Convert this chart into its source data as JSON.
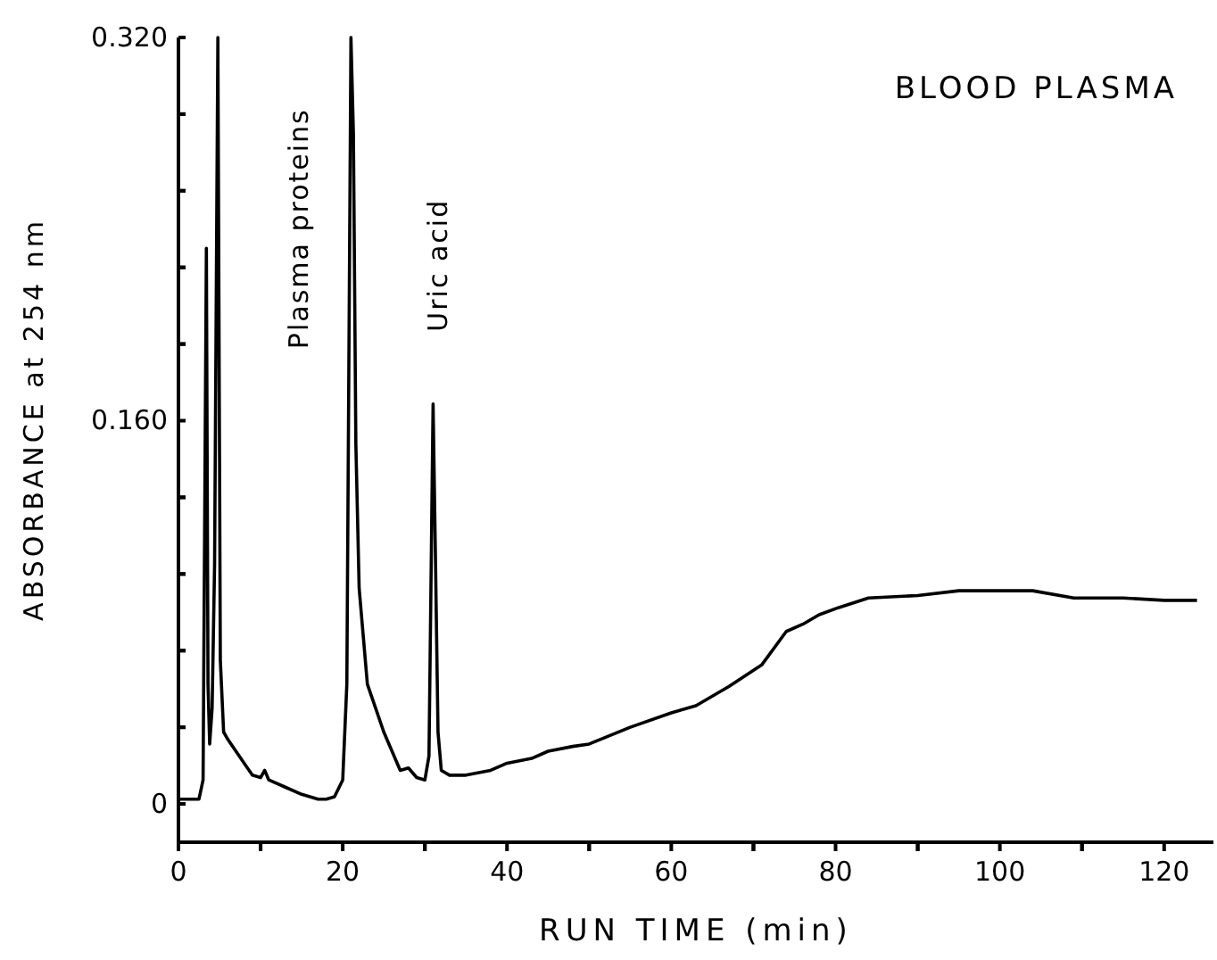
{
  "chart_data": {
    "type": "line",
    "title": "BLOOD PLASMA",
    "xlabel": "RUN  TIME  (min)",
    "ylabel": "ABSORBANCE at 254 nm",
    "annotations": [
      {
        "text": "Plasma proteins",
        "x": 21,
        "y": 0.32
      },
      {
        "text": "Uric acid",
        "x": 31,
        "y": 0.167
      }
    ],
    "xlim": [
      0,
      126
    ],
    "ylim": [
      -0.016,
      0.32
    ],
    "xticks": [
      0,
      {
        "value": 10,
        "label": null
      },
      20,
      {
        "value": 30,
        "label": null
      },
      40,
      {
        "value": 50,
        "label": null
      },
      60,
      {
        "value": 70,
        "label": null
      },
      80,
      {
        "value": 90,
        "label": null
      },
      100,
      {
        "value": 110,
        "label": null
      },
      120
    ],
    "yticks": [
      0,
      {
        "value": 0.032,
        "label": null
      },
      {
        "value": 0.064,
        "label": null
      },
      {
        "value": 0.096,
        "label": null
      },
      {
        "value": 0.128,
        "label": null
      },
      {
        "value": 0.16,
        "label": "0.160"
      },
      {
        "value": 0.192,
        "label": null
      },
      {
        "value": 0.224,
        "label": null
      },
      {
        "value": 0.256,
        "label": null
      },
      {
        "value": 0.288,
        "label": null
      },
      {
        "value": 0.32,
        "label": "0.320"
      }
    ],
    "series": [
      {
        "color": "#000000",
        "x": [
          0,
          2.5,
          3.0,
          3.4,
          3.6,
          3.8,
          4.1,
          4.4,
          4.8,
          5.1,
          5.5,
          6,
          7,
          8,
          9,
          10,
          10.5,
          11,
          13,
          15,
          17,
          18,
          19,
          20,
          20.5,
          21,
          21.3,
          21.6,
          22,
          22.5,
          23,
          24,
          25,
          26,
          27,
          28,
          29,
          30,
          30.5,
          31,
          31.3,
          31.6,
          32,
          33,
          35,
          38,
          40,
          43,
          45,
          48,
          50,
          55,
          60,
          63,
          67,
          71,
          74,
          76,
          78,
          80.4,
          84,
          90,
          95,
          100,
          104,
          109,
          115,
          120,
          124
        ],
        "values": [
          0.002,
          0.002,
          0.01,
          0.232,
          0.05,
          0.025,
          0.04,
          0.1,
          0.32,
          0.06,
          0.03,
          0.027,
          0.022,
          0.017,
          0.012,
          0.011,
          0.014,
          0.01,
          0.007,
          0.004,
          0.002,
          0.002,
          0.003,
          0.01,
          0.05,
          0.32,
          0.28,
          0.15,
          0.09,
          0.07,
          0.05,
          0.04,
          0.03,
          0.022,
          0.014,
          0.015,
          0.011,
          0.01,
          0.02,
          0.167,
          0.1,
          0.03,
          0.014,
          0.012,
          0.012,
          0.014,
          0.017,
          0.019,
          0.022,
          0.024,
          0.025,
          0.032,
          0.038,
          0.041,
          0.049,
          0.058,
          0.072,
          0.075,
          0.079,
          0.082,
          0.086,
          0.087,
          0.089,
          0.089,
          0.089,
          0.086,
          0.086,
          0.085,
          0.085
        ]
      }
    ]
  }
}
